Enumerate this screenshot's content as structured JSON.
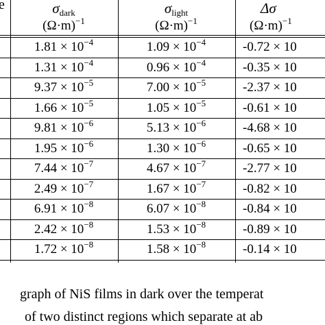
{
  "table": {
    "left_header": "e",
    "headers": [
      {
        "symbol": "σ",
        "sub": "dark",
        "unit": "(Ω·m)",
        "unit_exp": "−1"
      },
      {
        "symbol": "σ",
        "sub": "light",
        "unit": "(Ω·m)",
        "unit_exp": "−1"
      },
      {
        "symbol": "Δσ",
        "unit": "(Ω·m)",
        "unit_exp": "−1"
      }
    ],
    "rows": [
      [
        {
          "base": "1.81 × 10",
          "exp": "−4"
        },
        {
          "base": "1.09 × 10",
          "exp": "−4"
        },
        {
          "base": "-0.72 × 10"
        }
      ],
      [
        {
          "base": "1.31 × 10",
          "exp": "−4"
        },
        {
          "base": "0.96 × 10",
          "exp": "−4"
        },
        {
          "base": "-0.35 × 10"
        }
      ],
      [
        {
          "base": "9.37 × 10",
          "exp": "−5"
        },
        {
          "base": "7.00 × 10",
          "exp": "−5"
        },
        {
          "base": "-2.37 × 10"
        }
      ],
      [
        {
          "base": "1.66 × 10",
          "exp": "−5"
        },
        {
          "base": "1.05 × 10",
          "exp": "−5"
        },
        {
          "base": "-0.61 × 10"
        }
      ],
      [
        {
          "base": "9.81 × 10",
          "exp": "−6"
        },
        {
          "base": "5.13 × 10",
          "exp": "−6"
        },
        {
          "base": "-4.68 × 10"
        }
      ],
      [
        {
          "base": "1.95 × 10",
          "exp": "−6"
        },
        {
          "base": "1.30 × 10",
          "exp": "−6"
        },
        {
          "base": "-0.65 × 10"
        }
      ],
      [
        {
          "base": "7.44 × 10",
          "exp": "−7"
        },
        {
          "base": "4.67 × 10",
          "exp": "−7"
        },
        {
          "base": "-2.77 × 10"
        }
      ],
      [
        {
          "base": "2.49 × 10",
          "exp": "−7"
        },
        {
          "base": "1.67 × 10",
          "exp": "−7"
        },
        {
          "base": "-0.82 × 10"
        }
      ],
      [
        {
          "base": "6.91 × 10",
          "exp": "−8"
        },
        {
          "base": "6.07 × 10",
          "exp": "−8"
        },
        {
          "base": "-0.84 × 10"
        }
      ],
      [
        {
          "base": "2.42 × 10",
          "exp": "−8"
        },
        {
          "base": "1.53 × 10",
          "exp": "−8"
        },
        {
          "base": "-0.89 × 10"
        }
      ],
      [
        {
          "base": "1.72 × 10",
          "exp": "−8"
        },
        {
          "base": "1.58 × 10",
          "exp": "−8"
        },
        {
          "base": "-0.14 × 10"
        }
      ]
    ]
  },
  "caption": {
    "lines": [
      "graph of NiS films in dark over the temperat",
      "of two distinct regions which separate at ab"
    ]
  }
}
